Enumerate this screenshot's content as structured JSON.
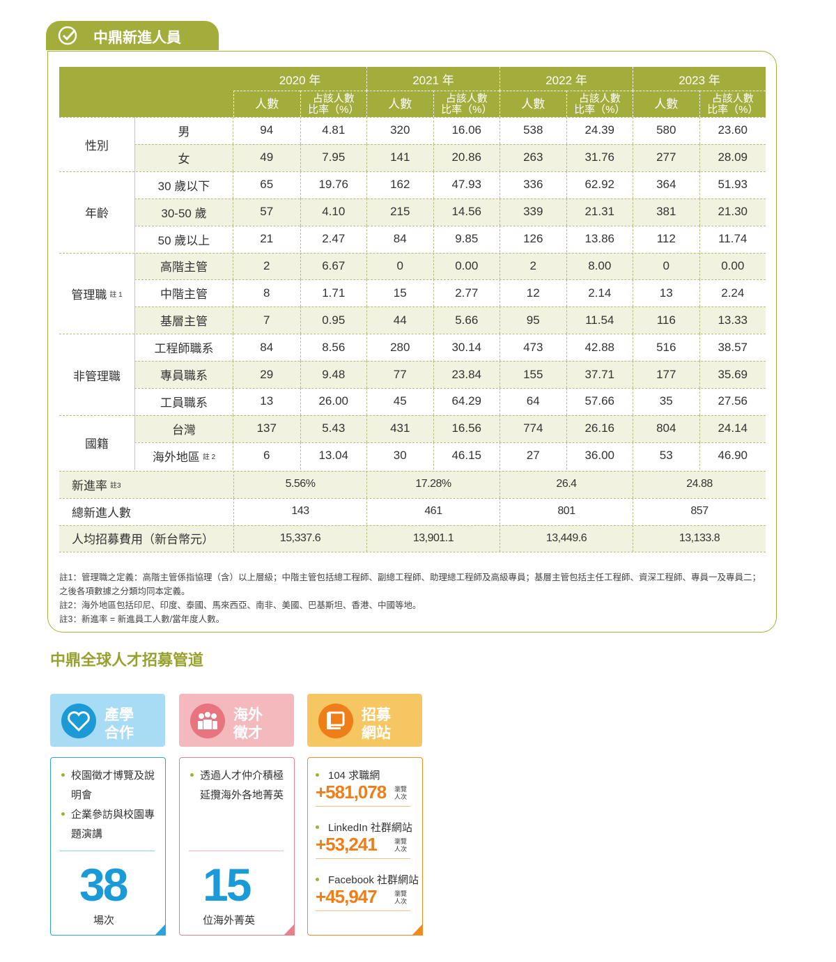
{
  "header": {
    "title": "中鼎新進人員"
  },
  "table": {
    "years": [
      "2020 年",
      "2021 年",
      "2022 年",
      "2023 年"
    ],
    "subheaders": [
      [
        "人數"
      ],
      [
        "占該人數",
        "比率（%）"
      ]
    ],
    "groups": [
      {
        "name": "性別",
        "rows": [
          {
            "label": "男",
            "values": [
              "94",
              "4.81",
              "320",
              "16.06",
              "538",
              "24.39",
              "580",
              "23.60"
            ]
          },
          {
            "label": "女",
            "values": [
              "49",
              "7.95",
              "141",
              "20.86",
              "263",
              "31.76",
              "277",
              "28.09"
            ]
          }
        ]
      },
      {
        "name": "年齡",
        "rows": [
          {
            "label": "30 歲以下",
            "values": [
              "65",
              "19.76",
              "162",
              "47.93",
              "336",
              "62.92",
              "364",
              "51.93"
            ]
          },
          {
            "label": "30-50 歲",
            "values": [
              "57",
              "4.10",
              "215",
              "14.56",
              "339",
              "21.31",
              "381",
              "21.30"
            ]
          },
          {
            "label": "50 歲以上",
            "values": [
              "21",
              "2.47",
              "84",
              "9.85",
              "126",
              "13.86",
              "112",
              "11.74"
            ]
          }
        ]
      },
      {
        "name": "管理職",
        "note": "註 1",
        "rows": [
          {
            "label": "高階主管",
            "values": [
              "2",
              "6.67",
              "0",
              "0.00",
              "2",
              "8.00",
              "0",
              "0.00"
            ]
          },
          {
            "label": "中階主管",
            "values": [
              "8",
              "1.71",
              "15",
              "2.77",
              "12",
              "2.14",
              "13",
              "2.24"
            ]
          },
          {
            "label": "基層主管",
            "values": [
              "7",
              "0.95",
              "44",
              "5.66",
              "95",
              "11.54",
              "116",
              "13.33"
            ]
          }
        ]
      },
      {
        "name": "非管理職",
        "rows": [
          {
            "label": "工程師職系",
            "values": [
              "84",
              "8.56",
              "280",
              "30.14",
              "473",
              "42.88",
              "516",
              "38.57"
            ]
          },
          {
            "label": "專員職系",
            "values": [
              "29",
              "9.48",
              "77",
              "23.84",
              "155",
              "37.71",
              "177",
              "35.69"
            ]
          },
          {
            "label": "工員職系",
            "values": [
              "13",
              "26.00",
              "45",
              "64.29",
              "64",
              "57.66",
              "35",
              "27.56"
            ]
          }
        ]
      },
      {
        "name": "國籍",
        "rows": [
          {
            "label": "台灣",
            "values": [
              "137",
              "5.43",
              "431",
              "16.56",
              "774",
              "26.16",
              "804",
              "24.14"
            ]
          },
          {
            "label": "海外地區",
            "note": "註 2",
            "values": [
              "6",
              "13.04",
              "30",
              "46.15",
              "27",
              "36.00",
              "53",
              "46.90"
            ]
          }
        ]
      }
    ],
    "summary": [
      {
        "label": "新進率",
        "note": "註3",
        "values": [
          "5.56%",
          "17.28%",
          "26.4",
          "24.88"
        ]
      },
      {
        "label": "總新進人數",
        "values": [
          "143",
          "461",
          "801",
          "857"
        ]
      },
      {
        "label": "人均招募費用（新台幣元）",
        "values": [
          "15,337.6",
          "13,901.1",
          "13,449.6",
          "13,133.8"
        ]
      }
    ],
    "notes": [
      "註1：管理職之定義：高階主管係指協理（含）以上層級；中階主管包括總工程師、副總工程師、助理總工程師及高級專員；基層主管包括主任工程師、資深工程師、專員一及專員二；",
      "之後各項數據之分類均同本定義。",
      "註2：海外地區包括印尼、印度、泰國、馬來西亞、南非、美國、巴基斯坦、香港、中國等地。",
      "註3：新進率 = 新進員工人數/當年度人數。"
    ]
  },
  "channels": {
    "title": "中鼎全球人才招募管道",
    "cards": [
      {
        "title": [
          "產學",
          "合作"
        ],
        "bullets": [
          "校園徵才博覽及說明會",
          "企業參訪與校園專題演講"
        ],
        "count": "38",
        "unit": "場次"
      },
      {
        "title": [
          "海外",
          "徵才"
        ],
        "bullets": [
          "透過人才仲介積極延攬海外各地菁英"
        ],
        "count": "15",
        "unit": "位海外菁英"
      },
      {
        "title": [
          "招募",
          "網站"
        ],
        "sites": [
          {
            "name": "104 求職網",
            "value": "+581,078",
            "unit": [
              "瀏覽",
              "人次"
            ]
          },
          {
            "name": "LinkedIn 社群網站",
            "value": "+53,241",
            "unit": [
              "瀏覽",
              "人次"
            ]
          },
          {
            "name": "Facebook 社群網站",
            "value": "+45,947",
            "unit": [
              "瀏覽",
              "人次"
            ]
          }
        ]
      }
    ]
  }
}
